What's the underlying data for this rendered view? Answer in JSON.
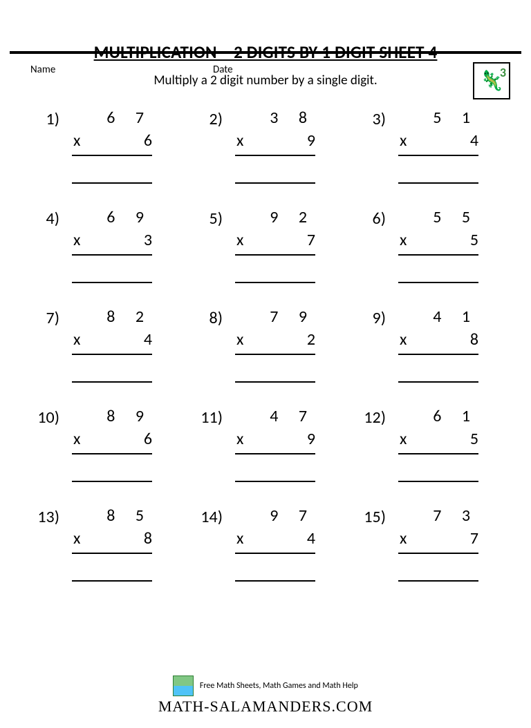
{
  "header": {
    "name_label": "Name",
    "date_label": "Date",
    "grade_number": "3"
  },
  "title": "MULTIPLICATION – 2 DIGITS BY 1 DIGIT SHEET 4",
  "subtitle": "Multiply a 2 digit number by a single digit.",
  "operator": "x",
  "problems": [
    {
      "n": "1)",
      "top": "6 7",
      "bot": "6"
    },
    {
      "n": "2)",
      "top": "3 8",
      "bot": "9"
    },
    {
      "n": "3)",
      "top": "5 1",
      "bot": "4"
    },
    {
      "n": "4)",
      "top": "6 9",
      "bot": "3"
    },
    {
      "n": "5)",
      "top": "9 2",
      "bot": "7"
    },
    {
      "n": "6)",
      "top": "5 5",
      "bot": "5"
    },
    {
      "n": "7)",
      "top": "8 2",
      "bot": "4"
    },
    {
      "n": "8)",
      "top": "7 9",
      "bot": "2"
    },
    {
      "n": "9)",
      "top": "4 1",
      "bot": "8"
    },
    {
      "n": "10)",
      "top": "8 9",
      "bot": "6"
    },
    {
      "n": "11)",
      "top": "4 7",
      "bot": "9"
    },
    {
      "n": "12)",
      "top": "6 1",
      "bot": "5"
    },
    {
      "n": "13)",
      "top": "8 5",
      "bot": "8"
    },
    {
      "n": "14)",
      "top": "9 7",
      "bot": "4"
    },
    {
      "n": "15)",
      "top": "7 3",
      "bot": "7"
    }
  ],
  "footer": {
    "tagline": "Free Math Sheets, Math Games and Math Help",
    "brand": "Math-Salamanders.com"
  },
  "style": {
    "page_bg": "#ffffff",
    "text_color": "#000000",
    "rule_color": "#000000",
    "title_fontsize": 25,
    "subtitle_fontsize": 19,
    "problem_fontsize": 24,
    "digit_letterspacing": 12,
    "grade_border_color": "#000000",
    "grade_num_color": "#388e3c"
  }
}
